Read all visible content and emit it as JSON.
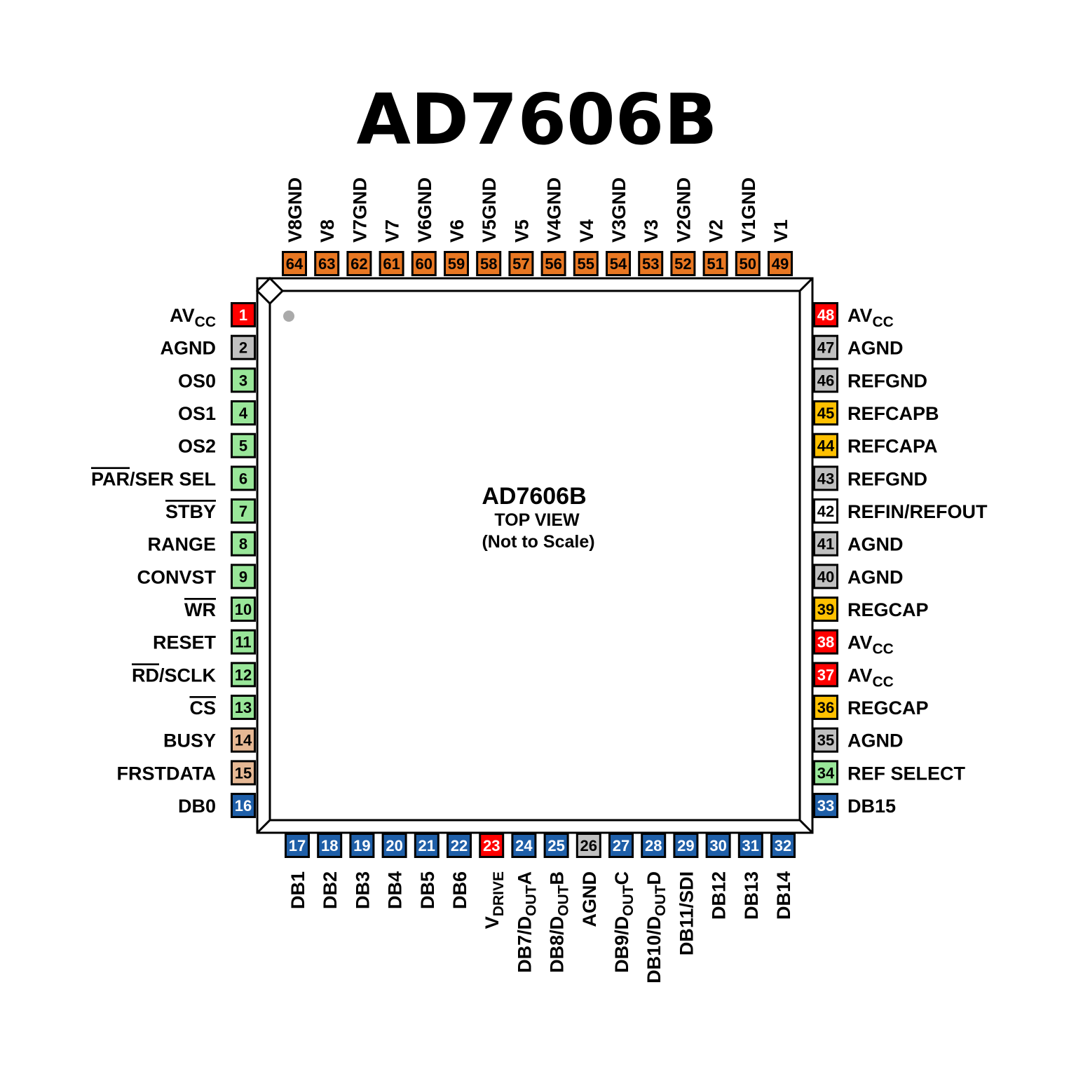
{
  "title": "AD7606B",
  "center": {
    "part": "AD7606B",
    "view": "TOP VIEW",
    "note": "(Not to Scale)"
  },
  "colors": {
    "power": "#ff0000",
    "ground": "#c0c0c0",
    "control": "#99e699",
    "status": "#e6b894",
    "data": "#1f5fa8",
    "analog_in": "#e87722",
    "reference": "#ffc000",
    "ref_io": "#ffffff"
  },
  "pins": {
    "left": [
      {
        "n": "1",
        "c": "power",
        "seg": [
          {
            "t": "AV"
          },
          {
            "t": "CC",
            "sub": true
          }
        ]
      },
      {
        "n": "2",
        "c": "ground",
        "seg": [
          {
            "t": "AGND"
          }
        ]
      },
      {
        "n": "3",
        "c": "control",
        "seg": [
          {
            "t": "OS0"
          }
        ]
      },
      {
        "n": "4",
        "c": "control",
        "seg": [
          {
            "t": "OS1"
          }
        ]
      },
      {
        "n": "5",
        "c": "control",
        "seg": [
          {
            "t": "OS2"
          }
        ]
      },
      {
        "n": "6",
        "c": "control",
        "seg": [
          {
            "t": "PAR",
            "over": true
          },
          {
            "t": "/SER SEL"
          }
        ]
      },
      {
        "n": "7",
        "c": "control",
        "seg": [
          {
            "t": "STBY",
            "over": true
          }
        ]
      },
      {
        "n": "8",
        "c": "control",
        "seg": [
          {
            "t": "RANGE"
          }
        ]
      },
      {
        "n": "9",
        "c": "control",
        "seg": [
          {
            "t": "CONVST"
          }
        ]
      },
      {
        "n": "10",
        "c": "control",
        "seg": [
          {
            "t": "WR",
            "over": true
          }
        ]
      },
      {
        "n": "11",
        "c": "control",
        "seg": [
          {
            "t": "RESET"
          }
        ]
      },
      {
        "n": "12",
        "c": "control",
        "seg": [
          {
            "t": "RD",
            "over": true
          },
          {
            "t": "/SCLK"
          }
        ]
      },
      {
        "n": "13",
        "c": "control",
        "seg": [
          {
            "t": "CS",
            "over": true
          }
        ]
      },
      {
        "n": "14",
        "c": "status",
        "seg": [
          {
            "t": "BUSY"
          }
        ]
      },
      {
        "n": "15",
        "c": "status",
        "seg": [
          {
            "t": "FRSTDATA"
          }
        ]
      },
      {
        "n": "16",
        "c": "data",
        "seg": [
          {
            "t": "DB0"
          }
        ]
      }
    ],
    "bottom": [
      {
        "n": "17",
        "c": "data",
        "seg": [
          {
            "t": "DB1"
          }
        ]
      },
      {
        "n": "18",
        "c": "data",
        "seg": [
          {
            "t": "DB2"
          }
        ]
      },
      {
        "n": "19",
        "c": "data",
        "seg": [
          {
            "t": "DB3"
          }
        ]
      },
      {
        "n": "20",
        "c": "data",
        "seg": [
          {
            "t": "DB4"
          }
        ]
      },
      {
        "n": "21",
        "c": "data",
        "seg": [
          {
            "t": "DB5"
          }
        ]
      },
      {
        "n": "22",
        "c": "data",
        "seg": [
          {
            "t": "DB6"
          }
        ]
      },
      {
        "n": "23",
        "c": "power",
        "seg": [
          {
            "t": "V"
          },
          {
            "t": "DRIVE",
            "sub": true
          }
        ]
      },
      {
        "n": "24",
        "c": "data",
        "seg": [
          {
            "t": "DB7/D"
          },
          {
            "t": "OUT",
            "sub": true
          },
          {
            "t": "A"
          }
        ]
      },
      {
        "n": "25",
        "c": "data",
        "seg": [
          {
            "t": "DB8/D"
          },
          {
            "t": "OUT",
            "sub": true
          },
          {
            "t": "B"
          }
        ]
      },
      {
        "n": "26",
        "c": "ground",
        "seg": [
          {
            "t": "AGND"
          }
        ]
      },
      {
        "n": "27",
        "c": "data",
        "seg": [
          {
            "t": "DB9/D"
          },
          {
            "t": "OUT",
            "sub": true
          },
          {
            "t": "C"
          }
        ]
      },
      {
        "n": "28",
        "c": "data",
        "seg": [
          {
            "t": "DB10/D"
          },
          {
            "t": "OUT",
            "sub": true
          },
          {
            "t": "D"
          }
        ]
      },
      {
        "n": "29",
        "c": "data",
        "seg": [
          {
            "t": "DB11/SDI"
          }
        ]
      },
      {
        "n": "30",
        "c": "data",
        "seg": [
          {
            "t": "DB12"
          }
        ]
      },
      {
        "n": "31",
        "c": "data",
        "seg": [
          {
            "t": "DB13"
          }
        ]
      },
      {
        "n": "32",
        "c": "data",
        "seg": [
          {
            "t": "DB14"
          }
        ]
      }
    ],
    "right": [
      {
        "n": "48",
        "c": "power",
        "seg": [
          {
            "t": "AV"
          },
          {
            "t": "CC",
            "sub": true
          }
        ]
      },
      {
        "n": "47",
        "c": "ground",
        "seg": [
          {
            "t": "AGND"
          }
        ]
      },
      {
        "n": "46",
        "c": "ground",
        "seg": [
          {
            "t": "REFGND"
          }
        ]
      },
      {
        "n": "45",
        "c": "reference",
        "seg": [
          {
            "t": "REFCAPB"
          }
        ]
      },
      {
        "n": "44",
        "c": "reference",
        "seg": [
          {
            "t": "REFCAPA"
          }
        ]
      },
      {
        "n": "43",
        "c": "ground",
        "seg": [
          {
            "t": "REFGND"
          }
        ]
      },
      {
        "n": "42",
        "c": "ref_io",
        "seg": [
          {
            "t": "REFIN/REFOUT"
          }
        ]
      },
      {
        "n": "41",
        "c": "ground",
        "seg": [
          {
            "t": "AGND"
          }
        ]
      },
      {
        "n": "40",
        "c": "ground",
        "seg": [
          {
            "t": "AGND"
          }
        ]
      },
      {
        "n": "39",
        "c": "reference",
        "seg": [
          {
            "t": "REGCAP"
          }
        ]
      },
      {
        "n": "38",
        "c": "power",
        "seg": [
          {
            "t": "AV"
          },
          {
            "t": "CC",
            "sub": true
          }
        ]
      },
      {
        "n": "37",
        "c": "power",
        "seg": [
          {
            "t": "AV"
          },
          {
            "t": "CC",
            "sub": true
          }
        ]
      },
      {
        "n": "36",
        "c": "reference",
        "seg": [
          {
            "t": "REGCAP"
          }
        ]
      },
      {
        "n": "35",
        "c": "ground",
        "seg": [
          {
            "t": "AGND"
          }
        ]
      },
      {
        "n": "34",
        "c": "control",
        "seg": [
          {
            "t": "REF SELECT"
          }
        ]
      },
      {
        "n": "33",
        "c": "data",
        "seg": [
          {
            "t": "DB15"
          }
        ]
      }
    ],
    "top": [
      {
        "n": "64",
        "c": "analog_in",
        "seg": [
          {
            "t": "V8GND"
          }
        ]
      },
      {
        "n": "63",
        "c": "analog_in",
        "seg": [
          {
            "t": "V8"
          }
        ]
      },
      {
        "n": "62",
        "c": "analog_in",
        "seg": [
          {
            "t": "V7GND"
          }
        ]
      },
      {
        "n": "61",
        "c": "analog_in",
        "seg": [
          {
            "t": "V7"
          }
        ]
      },
      {
        "n": "60",
        "c": "analog_in",
        "seg": [
          {
            "t": "V6GND"
          }
        ]
      },
      {
        "n": "59",
        "c": "analog_in",
        "seg": [
          {
            "t": "V6"
          }
        ]
      },
      {
        "n": "58",
        "c": "analog_in",
        "seg": [
          {
            "t": "V5GND"
          }
        ]
      },
      {
        "n": "57",
        "c": "analog_in",
        "seg": [
          {
            "t": "V5"
          }
        ]
      },
      {
        "n": "56",
        "c": "analog_in",
        "seg": [
          {
            "t": "V4GND"
          }
        ]
      },
      {
        "n": "55",
        "c": "analog_in",
        "seg": [
          {
            "t": "V4"
          }
        ]
      },
      {
        "n": "54",
        "c": "analog_in",
        "seg": [
          {
            "t": "V3GND"
          }
        ]
      },
      {
        "n": "53",
        "c": "analog_in",
        "seg": [
          {
            "t": "V3"
          }
        ]
      },
      {
        "n": "52",
        "c": "analog_in",
        "seg": [
          {
            "t": "V2GND"
          }
        ]
      },
      {
        "n": "51",
        "c": "analog_in",
        "seg": [
          {
            "t": "V2"
          }
        ]
      },
      {
        "n": "50",
        "c": "analog_in",
        "seg": [
          {
            "t": "V1GND"
          }
        ]
      },
      {
        "n": "49",
        "c": "analog_in",
        "seg": [
          {
            "t": "V1"
          }
        ]
      }
    ]
  }
}
